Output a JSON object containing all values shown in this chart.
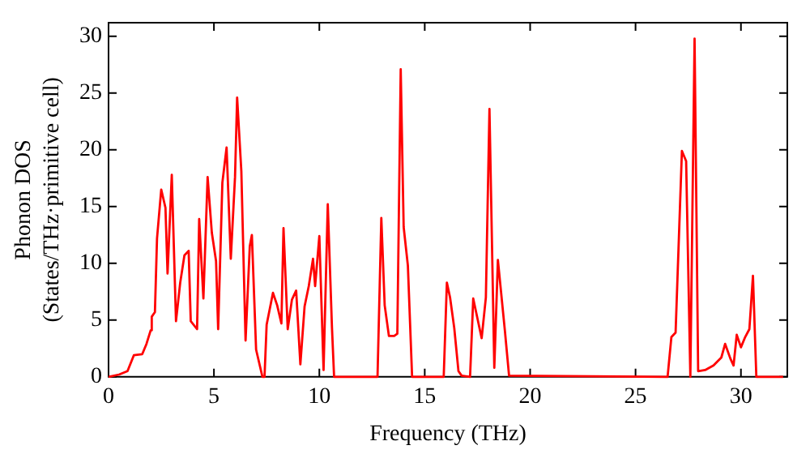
{
  "chart_data": {
    "type": "line",
    "xlabel": "Frequency (THz)",
    "ylabel": "Phonon DOS\n(States/THz·primitive cell)",
    "xlim": [
      0,
      32.2
    ],
    "ylim": [
      0,
      31.2
    ],
    "xticks": [
      0,
      5,
      10,
      15,
      20,
      25,
      30
    ],
    "yticks": [
      0,
      5,
      10,
      15,
      20,
      25,
      30
    ],
    "grid": false,
    "legend": false,
    "marker": "none",
    "line_style": "solid",
    "series": [
      {
        "color": "#ff0000",
        "x": [
          0,
          0.5,
          0.9,
          1.2,
          1.6,
          1.8,
          2.0,
          2.05,
          2.2,
          2.3,
          2.5,
          2.7,
          2.8,
          3.0,
          3.2,
          3.4,
          3.6,
          3.8,
          3.9,
          4.2,
          4.3,
          4.5,
          4.7,
          4.9,
          5.1,
          5.2,
          5.4,
          5.6,
          5.8,
          6.0,
          6.1,
          6.3,
          6.5,
          6.7,
          6.8,
          7.0,
          7.3,
          7.4,
          7.5,
          7.8,
          8.0,
          8.2,
          8.3,
          8.5,
          8.7,
          8.9,
          9.1,
          9.3,
          9.5,
          9.7,
          9.8,
          10.0,
          10.2,
          10.4,
          10.6,
          10.7,
          12.76,
          12.94,
          13.1,
          13.3,
          13.55,
          13.7,
          13.86,
          14.0,
          14.2,
          14.4,
          15.9,
          16.05,
          16.2,
          16.4,
          16.6,
          16.75,
          17.15,
          17.3,
          17.7,
          17.9,
          18.07,
          18.3,
          18.47,
          18.8,
          19.0,
          26.52,
          26.7,
          26.9,
          27.2,
          27.4,
          27.6,
          27.8,
          27.97,
          28.3,
          28.7,
          29.07,
          29.25,
          29.5,
          29.65,
          29.8,
          30.0,
          30.2,
          30.4,
          30.57,
          30.73,
          32.0
        ],
        "values": [
          0,
          0.2,
          0.5,
          1.9,
          2.0,
          2.9,
          4.1,
          5.3,
          5.7,
          12.2,
          16.5,
          14.9,
          9.1,
          17.8,
          4.9,
          8.3,
          10.7,
          11.1,
          4.9,
          4.2,
          13.9,
          6.9,
          17.6,
          12.7,
          10.2,
          4.2,
          17.1,
          20.2,
          10.4,
          17.6,
          24.6,
          18.1,
          3.2,
          11.5,
          12.5,
          2.4,
          0,
          0,
          4.6,
          7.4,
          6.3,
          4.7,
          13.1,
          4.2,
          6.8,
          7.6,
          1.1,
          6.2,
          8.0,
          10.4,
          8.0,
          12.4,
          0.6,
          15.2,
          4.3,
          0,
          0,
          14.0,
          6.3,
          3.6,
          3.6,
          3.8,
          27.1,
          13.2,
          9.8,
          0,
          0,
          8.3,
          7.0,
          4.3,
          0.5,
          0.1,
          0,
          6.9,
          3.4,
          7.0,
          23.6,
          0.8,
          10.3,
          4.1,
          0.1,
          0,
          3.5,
          3.9,
          19.9,
          19.0,
          0,
          29.8,
          0.5,
          0.6,
          1.0,
          1.7,
          2.9,
          1.6,
          1.0,
          3.7,
          2.6,
          3.5,
          4.2,
          8.9,
          0,
          0
        ]
      }
    ]
  }
}
